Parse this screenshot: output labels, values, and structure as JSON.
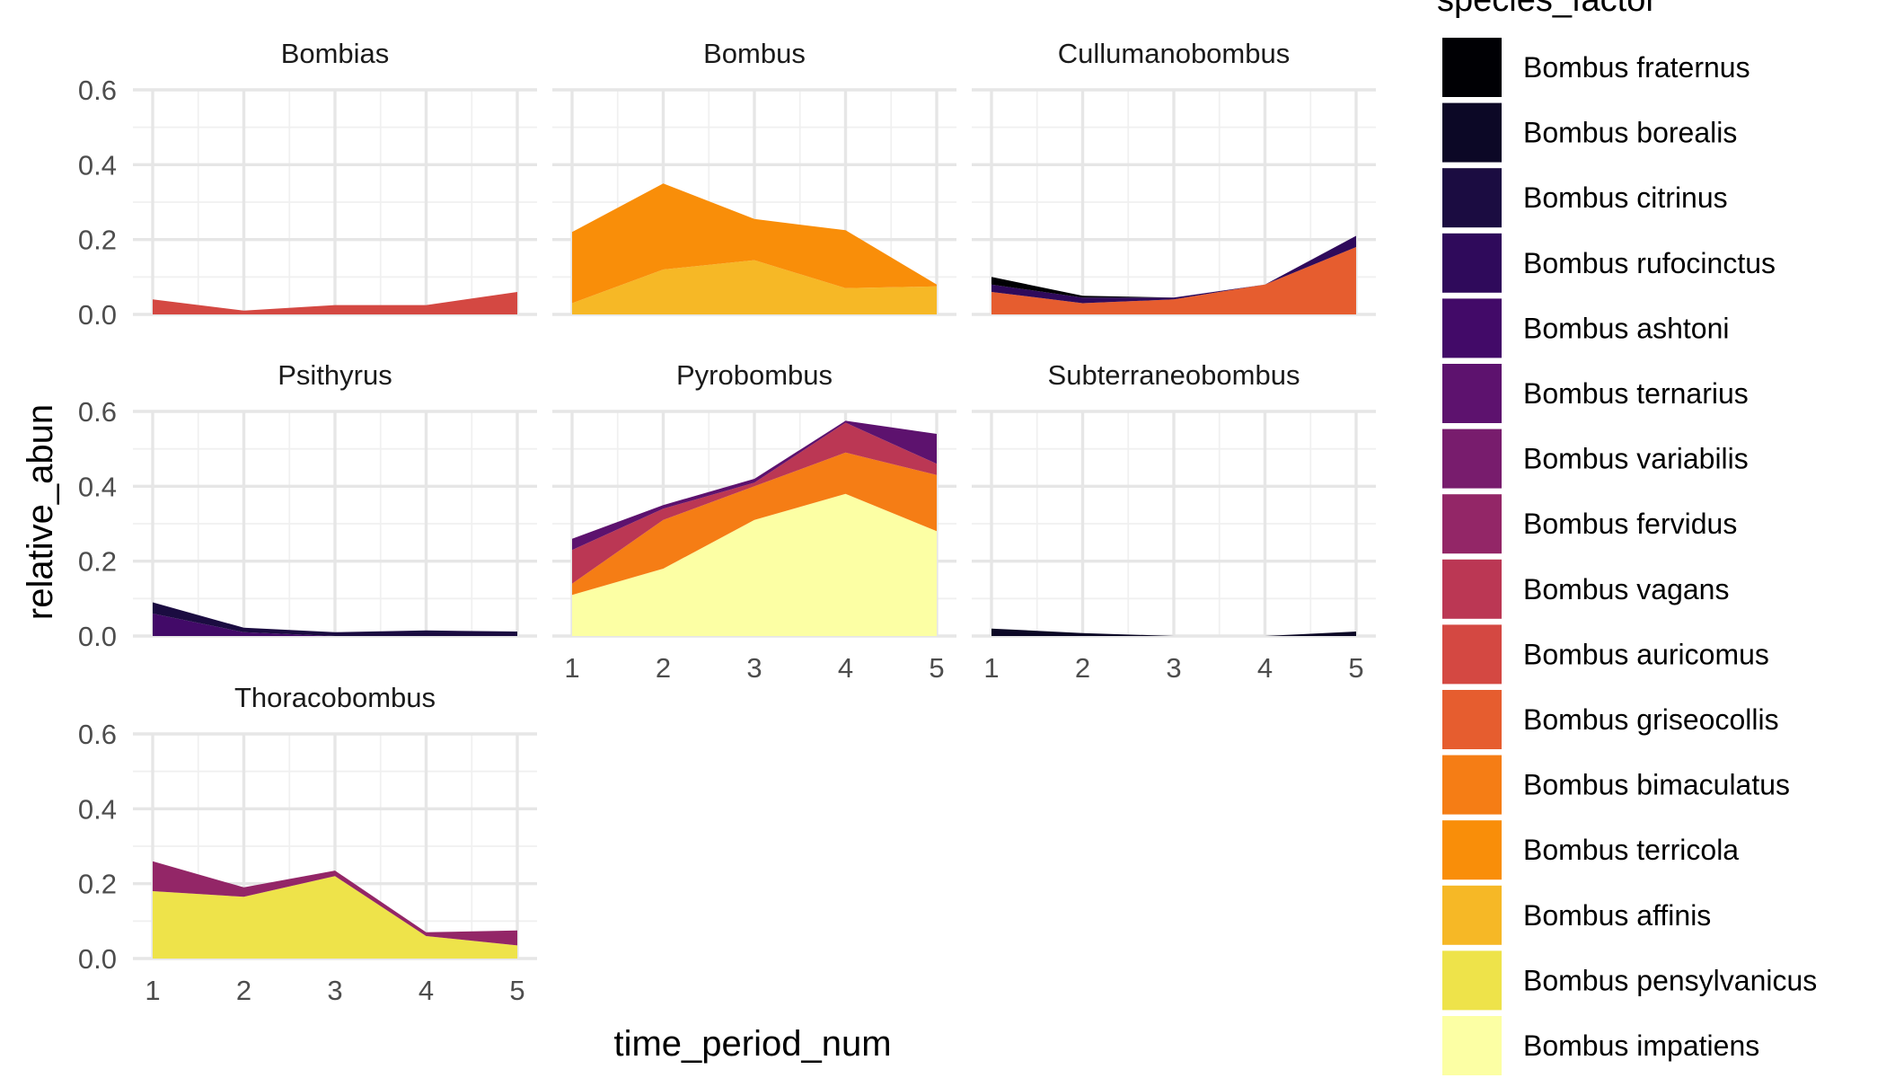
{
  "chart_data": {
    "type": "area",
    "stacked": true,
    "facet_by": "subgenus",
    "xlabel": "time_period_num",
    "ylabel": "relative_abun",
    "x": [
      1,
      2,
      3,
      4,
      5
    ],
    "xlim": [
      1,
      5
    ],
    "ylim": [
      0,
      0.6
    ],
    "y_ticks": [
      "0.0",
      "0.2",
      "0.4",
      "0.6"
    ],
    "x_ticks": [
      "1",
      "2",
      "3",
      "4",
      "5"
    ],
    "grid": true,
    "legend": {
      "title": "species_factor",
      "position": "right",
      "entries": [
        {
          "name": "Bombus fraternus",
          "color": "#000004"
        },
        {
          "name": "Bombus borealis",
          "color": "#0c0826"
        },
        {
          "name": "Bombus citrinus",
          "color": "#1b0c41"
        },
        {
          "name": "Bombus rufocinctus",
          "color": "#2f0a5b"
        },
        {
          "name": "Bombus ashtoni",
          "color": "#420a68"
        },
        {
          "name": "Bombus ternarius",
          "color": "#5d126e"
        },
        {
          "name": "Bombus variabilis",
          "color": "#781c6d"
        },
        {
          "name": "Bombus fervidus",
          "color": "#932667"
        },
        {
          "name": "Bombus vagans",
          "color": "#bb3754"
        },
        {
          "name": "Bombus auricomus",
          "color": "#d44842"
        },
        {
          "name": "Bombus griseocollis",
          "color": "#e65d2f"
        },
        {
          "name": "Bombus bimaculatus",
          "color": "#f57d15"
        },
        {
          "name": "Bombus terricola",
          "color": "#f98e09"
        },
        {
          "name": "Bombus affinis",
          "color": "#f6b826"
        },
        {
          "name": "Bombus pensylvanicus",
          "color": "#eee34a"
        },
        {
          "name": "Bombus impatiens",
          "color": "#fcffa4"
        }
      ]
    },
    "panels": [
      {
        "title": "Bombias",
        "series": [
          {
            "name": "Bombus auricomus",
            "values": [
              0.04,
              0.01,
              0.025,
              0.025,
              0.06
            ]
          }
        ]
      },
      {
        "title": "Bombus",
        "series": [
          {
            "name": "Bombus affinis",
            "values": [
              0.03,
              0.12,
              0.145,
              0.07,
              0.075
            ]
          },
          {
            "name": "Bombus terricola",
            "values": [
              0.19,
              0.23,
              0.11,
              0.155,
              0.005
            ]
          }
        ]
      },
      {
        "title": "Cullumanobombus",
        "series": [
          {
            "name": "Bombus griseocollis",
            "values": [
              0.06,
              0.03,
              0.04,
              0.08,
              0.18
            ]
          },
          {
            "name": "Bombus rufocinctus",
            "values": [
              0.02,
              0.015,
              0.005,
              0.0,
              0.03
            ]
          },
          {
            "name": "Bombus fraternus",
            "values": [
              0.02,
              0.005,
              0.0,
              0.0,
              0.0
            ]
          }
        ]
      },
      {
        "title": "Psithyrus",
        "series": [
          {
            "name": "Bombus ashtoni",
            "values": [
              0.06,
              0.01,
              0.0,
              0.0,
              0.0
            ]
          },
          {
            "name": "Bombus citrinus",
            "values": [
              0.03,
              0.012,
              0.01,
              0.015,
              0.012
            ]
          }
        ]
      },
      {
        "title": "Pyrobombus",
        "series": [
          {
            "name": "Bombus impatiens",
            "values": [
              0.11,
              0.18,
              0.31,
              0.38,
              0.28
            ]
          },
          {
            "name": "Bombus bimaculatus",
            "values": [
              0.03,
              0.13,
              0.09,
              0.11,
              0.15
            ]
          },
          {
            "name": "Bombus vagans",
            "values": [
              0.09,
              0.03,
              0.01,
              0.08,
              0.03
            ]
          },
          {
            "name": "Bombus ternarius",
            "values": [
              0.03,
              0.01,
              0.01,
              0.005,
              0.08
            ]
          }
        ]
      },
      {
        "title": "Subterraneobombus",
        "series": [
          {
            "name": "Bombus borealis",
            "values": [
              0.02,
              0.008,
              0.0,
              0.0,
              0.012
            ]
          }
        ]
      },
      {
        "title": "Thoracobombus",
        "series": [
          {
            "name": "Bombus pensylvanicus",
            "values": [
              0.18,
              0.165,
              0.22,
              0.06,
              0.035
            ]
          },
          {
            "name": "Bombus fervidus",
            "values": [
              0.08,
              0.025,
              0.015,
              0.01,
              0.04
            ]
          }
        ]
      }
    ]
  }
}
